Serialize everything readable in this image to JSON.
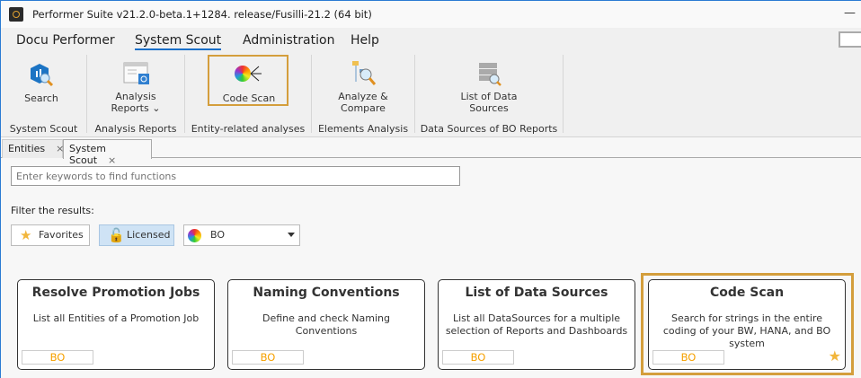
{
  "window": {
    "title": "Performer Suite v21.2.0-beta.1+1284. release/Fusilli-21.2 (64 bit)",
    "minimize": "—"
  },
  "menu": [
    "Docu Performer",
    "System Scout",
    "Administration",
    "Help"
  ],
  "ribbon": {
    "buttons": [
      {
        "label": "Search",
        "icon": "search-scout-icon"
      },
      {
        "label": "Analysis Reports",
        "icon": "analysis-reports-icon"
      },
      {
        "label": "Code Scan",
        "icon": "code-scan-icon"
      },
      {
        "label": "Analyze & Compare",
        "icon": "analyze-compare-icon"
      },
      {
        "label": "List of Data Sources",
        "icon": "data-sources-icon"
      }
    ],
    "groups": [
      "System Scout",
      "Analysis Reports",
      "Entity-related analyses",
      "Elements Analysis",
      "Data Sources of BO Reports"
    ]
  },
  "tabs": [
    {
      "label": "Entities",
      "close": "×"
    },
    {
      "label": "System Scout",
      "close": "×"
    }
  ],
  "search": {
    "placeholder": "Enter keywords to find functions"
  },
  "filter": {
    "label": "Filter the results:",
    "favorites": "Favorites",
    "licensed": "Licensed",
    "system": "BO"
  },
  "cards": [
    {
      "title": "Resolve Promotion Jobs",
      "desc": "List all Entities of a Promotion Job",
      "tag": "BO",
      "favorite": false
    },
    {
      "title": "Naming Conventions",
      "desc": "Define and check Naming Conventions",
      "tag": "BO",
      "favorite": false
    },
    {
      "title": "List of Data Sources",
      "desc": "List all DataSources for a multiple selection of Reports and Dashboards",
      "tag": "BO",
      "favorite": false
    },
    {
      "title": "Code Scan",
      "desc": "Search for strings in the entire coding of your BW, HANA, and BO system",
      "tag": "BO",
      "favorite": true
    }
  ],
  "colors": {
    "accent": "#1a6fc9",
    "highlight": "#d49e3c",
    "tag": "#f5a000"
  }
}
